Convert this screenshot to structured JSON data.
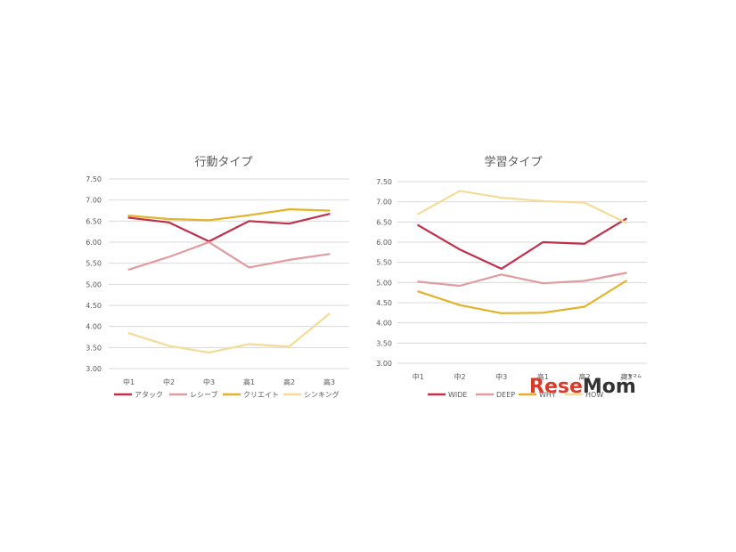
{
  "chart_data": [
    {
      "type": "line",
      "title": "行動タイプ",
      "categories": [
        "中1",
        "中2",
        "中3",
        "高1",
        "高2",
        "高3"
      ],
      "ylim": [
        3.0,
        7.5
      ],
      "yticks": [
        "3.00",
        "3.50",
        "4.00",
        "4.50",
        "5.00",
        "5.50",
        "6.00",
        "6.50",
        "7.00",
        "7.50"
      ],
      "grid": true,
      "legend_position": "bottom",
      "series": [
        {
          "name": "アタック",
          "color": "#c0304a",
          "values": [
            6.58,
            6.47,
            6.02,
            6.5,
            6.44,
            6.67
          ]
        },
        {
          "name": "レシーブ",
          "color": "#e09aa0",
          "values": [
            5.35,
            5.65,
            6.0,
            5.4,
            5.58,
            5.72
          ]
        },
        {
          "name": "クリエイト",
          "color": "#e2b228",
          "values": [
            6.63,
            6.55,
            6.52,
            6.64,
            6.78,
            6.75
          ]
        },
        {
          "name": "シンキング",
          "color": "#f4dc96",
          "values": [
            3.84,
            3.54,
            3.38,
            3.58,
            3.52,
            4.3
          ]
        }
      ]
    },
    {
      "type": "line",
      "title": "学習タイプ",
      "categories": [
        "中1",
        "中2",
        "中3",
        "高1",
        "高2",
        "高3"
      ],
      "ylim": [
        3.0,
        7.5
      ],
      "yticks": [
        "3.00",
        "3.50",
        "4.00",
        "4.50",
        "5.00",
        "5.50",
        "6.00",
        "6.50",
        "7.00",
        "7.50"
      ],
      "grid": true,
      "legend_position": "bottom",
      "series": [
        {
          "name": "WIDE",
          "color": "#c0304a",
          "values": [
            6.42,
            5.82,
            5.34,
            6.0,
            5.96,
            6.58
          ]
        },
        {
          "name": "DEEP",
          "color": "#e09aa0",
          "values": [
            5.02,
            4.92,
            5.2,
            4.98,
            5.04,
            5.24
          ]
        },
        {
          "name": "WHY",
          "color": "#e2b228",
          "values": [
            4.78,
            4.44,
            4.24,
            4.25,
            4.4,
            5.04
          ]
        },
        {
          "name": "HOW",
          "color": "#f4dc96",
          "values": [
            6.7,
            7.27,
            7.1,
            7.02,
            6.98,
            6.48
          ]
        }
      ]
    }
  ],
  "watermark": {
    "text": "ReseMom",
    "sub": "リセマム",
    "colors": [
      "#d93a2a",
      "#333333"
    ]
  }
}
